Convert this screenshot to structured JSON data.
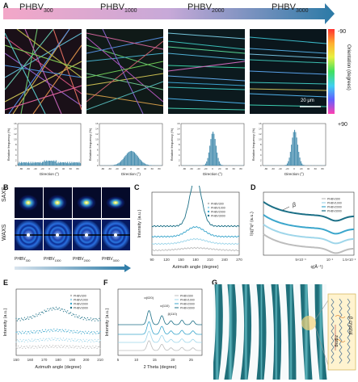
{
  "panel_labels": {
    "a": "A",
    "b": "B",
    "c": "C",
    "d": "D",
    "e": "E",
    "f": "F",
    "g": "G"
  },
  "top_arrow": {
    "labels": [
      "PHBV",
      "PHBV",
      "PHBV",
      "PHBV"
    ],
    "subs": [
      "300",
      "1000",
      "2000",
      "3000"
    ],
    "colors": [
      "#f2a6c6",
      "#2f7fa8"
    ]
  },
  "orientation_bar": {
    "top": "-90",
    "bottom": "+90",
    "label": "Orientation (degrees)"
  },
  "scale_bar": "20 μm",
  "histograms": {
    "ylabel": "Relative frequency (%)",
    "xlabel": "Direction (°)",
    "yticks": [
      "0",
      "2",
      "4",
      "6",
      "8",
      "10",
      "12",
      "14",
      "16"
    ],
    "xticks": [
      "-80",
      "-60",
      "-40",
      "-20",
      "0",
      "20",
      "40",
      "60",
      "80"
    ]
  },
  "saxs_waxs": {
    "saxs": "SAXS",
    "waxs": "WAXS",
    "labels": [
      "PHBV",
      "PHBV",
      "PHBV",
      "PHBV"
    ],
    "subs": [
      "300",
      "1000",
      "2000",
      "3000"
    ]
  },
  "chart_data": [
    {
      "panel": "C",
      "type": "line",
      "xlabel": "Azimuth angle (degree)",
      "ylabel": "Intensity (a.u.)",
      "xticks": [
        "90",
        "120",
        "150",
        "180",
        "210",
        "240",
        "270"
      ],
      "xlim": [
        90,
        270
      ],
      "legend": [
        "PHBV300",
        "PHBV1000",
        "PHBV2000",
        "PHBV3000"
      ],
      "colors": [
        "#bdbdbd",
        "#9fd6ea",
        "#3ba6cc",
        "#1b6f86"
      ]
    },
    {
      "panel": "D",
      "type": "line",
      "xlabel": "q(Å⁻¹)",
      "ylabel": "I(q)*q² (a.u.)",
      "xticks": [
        "5×10⁻³",
        "10⁻²",
        "1.5×10⁻²"
      ],
      "annotation": "β",
      "legend": [
        "PHBV300",
        "PHBV1000",
        "PHBV2000",
        "PHBV3000"
      ],
      "colors": [
        "#bdbdbd",
        "#9fd6ea",
        "#3ba6cc",
        "#1b6f86"
      ]
    },
    {
      "panel": "E",
      "type": "scatter",
      "xlabel": "Azimuth angle (degree)",
      "ylabel": "Intensity (a.u.)",
      "xticks": [
        "150",
        "160",
        "170",
        "180",
        "190",
        "200",
        "210"
      ],
      "xlim": [
        150,
        210
      ],
      "legend": [
        "PHBV300",
        "PHBV1000",
        "PHBV2000",
        "PHBV3000"
      ],
      "colors": [
        "#bdbdbd",
        "#9fd6ea",
        "#3ba6cc",
        "#1b6f86"
      ]
    },
    {
      "panel": "F",
      "type": "line",
      "xlabel": "2 Theta (degree)",
      "ylabel": "Intensity (a.u.)",
      "xticks": [
        "5",
        "10",
        "15",
        "20",
        "25"
      ],
      "xlim": [
        5,
        28
      ],
      "annotations": [
        "α(020)",
        "α(110)",
        "β(110)"
      ],
      "legend": [
        "PHBV300",
        "PHBV1000",
        "PHBV2000",
        "PHBV3000"
      ],
      "colors": [
        "#bdbdbd",
        "#9fd6ea",
        "#3ba6cc",
        "#1b6f86"
      ]
    }
  ],
  "panel_g": {
    "crystal": "β crystal",
    "zigzag": "zigzag"
  }
}
